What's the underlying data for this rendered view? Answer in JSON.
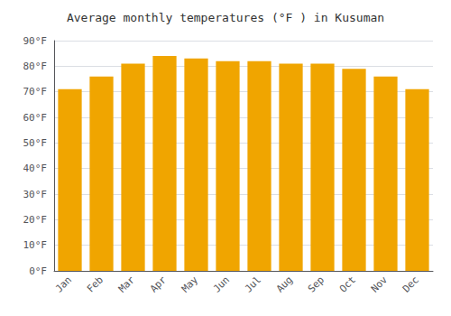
{
  "chart_data": {
    "type": "bar",
    "title": "Average monthly temperatures (°F ) in Kusuman",
    "categories": [
      "Jan",
      "Feb",
      "Mar",
      "Apr",
      "May",
      "Jun",
      "Jul",
      "Aug",
      "Sep",
      "Oct",
      "Nov",
      "Dec"
    ],
    "values": [
      71,
      76,
      81,
      84,
      83,
      82,
      82,
      81,
      81,
      79,
      76,
      71
    ],
    "color": "#F0A500",
    "ylim": [
      0,
      90
    ],
    "yticks": [
      {
        "value": 0,
        "label": "0°F"
      },
      {
        "value": 10,
        "label": "10°F"
      },
      {
        "value": 20,
        "label": "20°F"
      },
      {
        "value": 30,
        "label": "30°F"
      },
      {
        "value": 40,
        "label": "40°F"
      },
      {
        "value": 50,
        "label": "50°F"
      },
      {
        "value": 60,
        "label": "60°F"
      },
      {
        "value": 70,
        "label": "70°F"
      },
      {
        "value": 80,
        "label": "80°F"
      },
      {
        "value": 90,
        "label": "90°F"
      }
    ],
    "grid": true
  }
}
